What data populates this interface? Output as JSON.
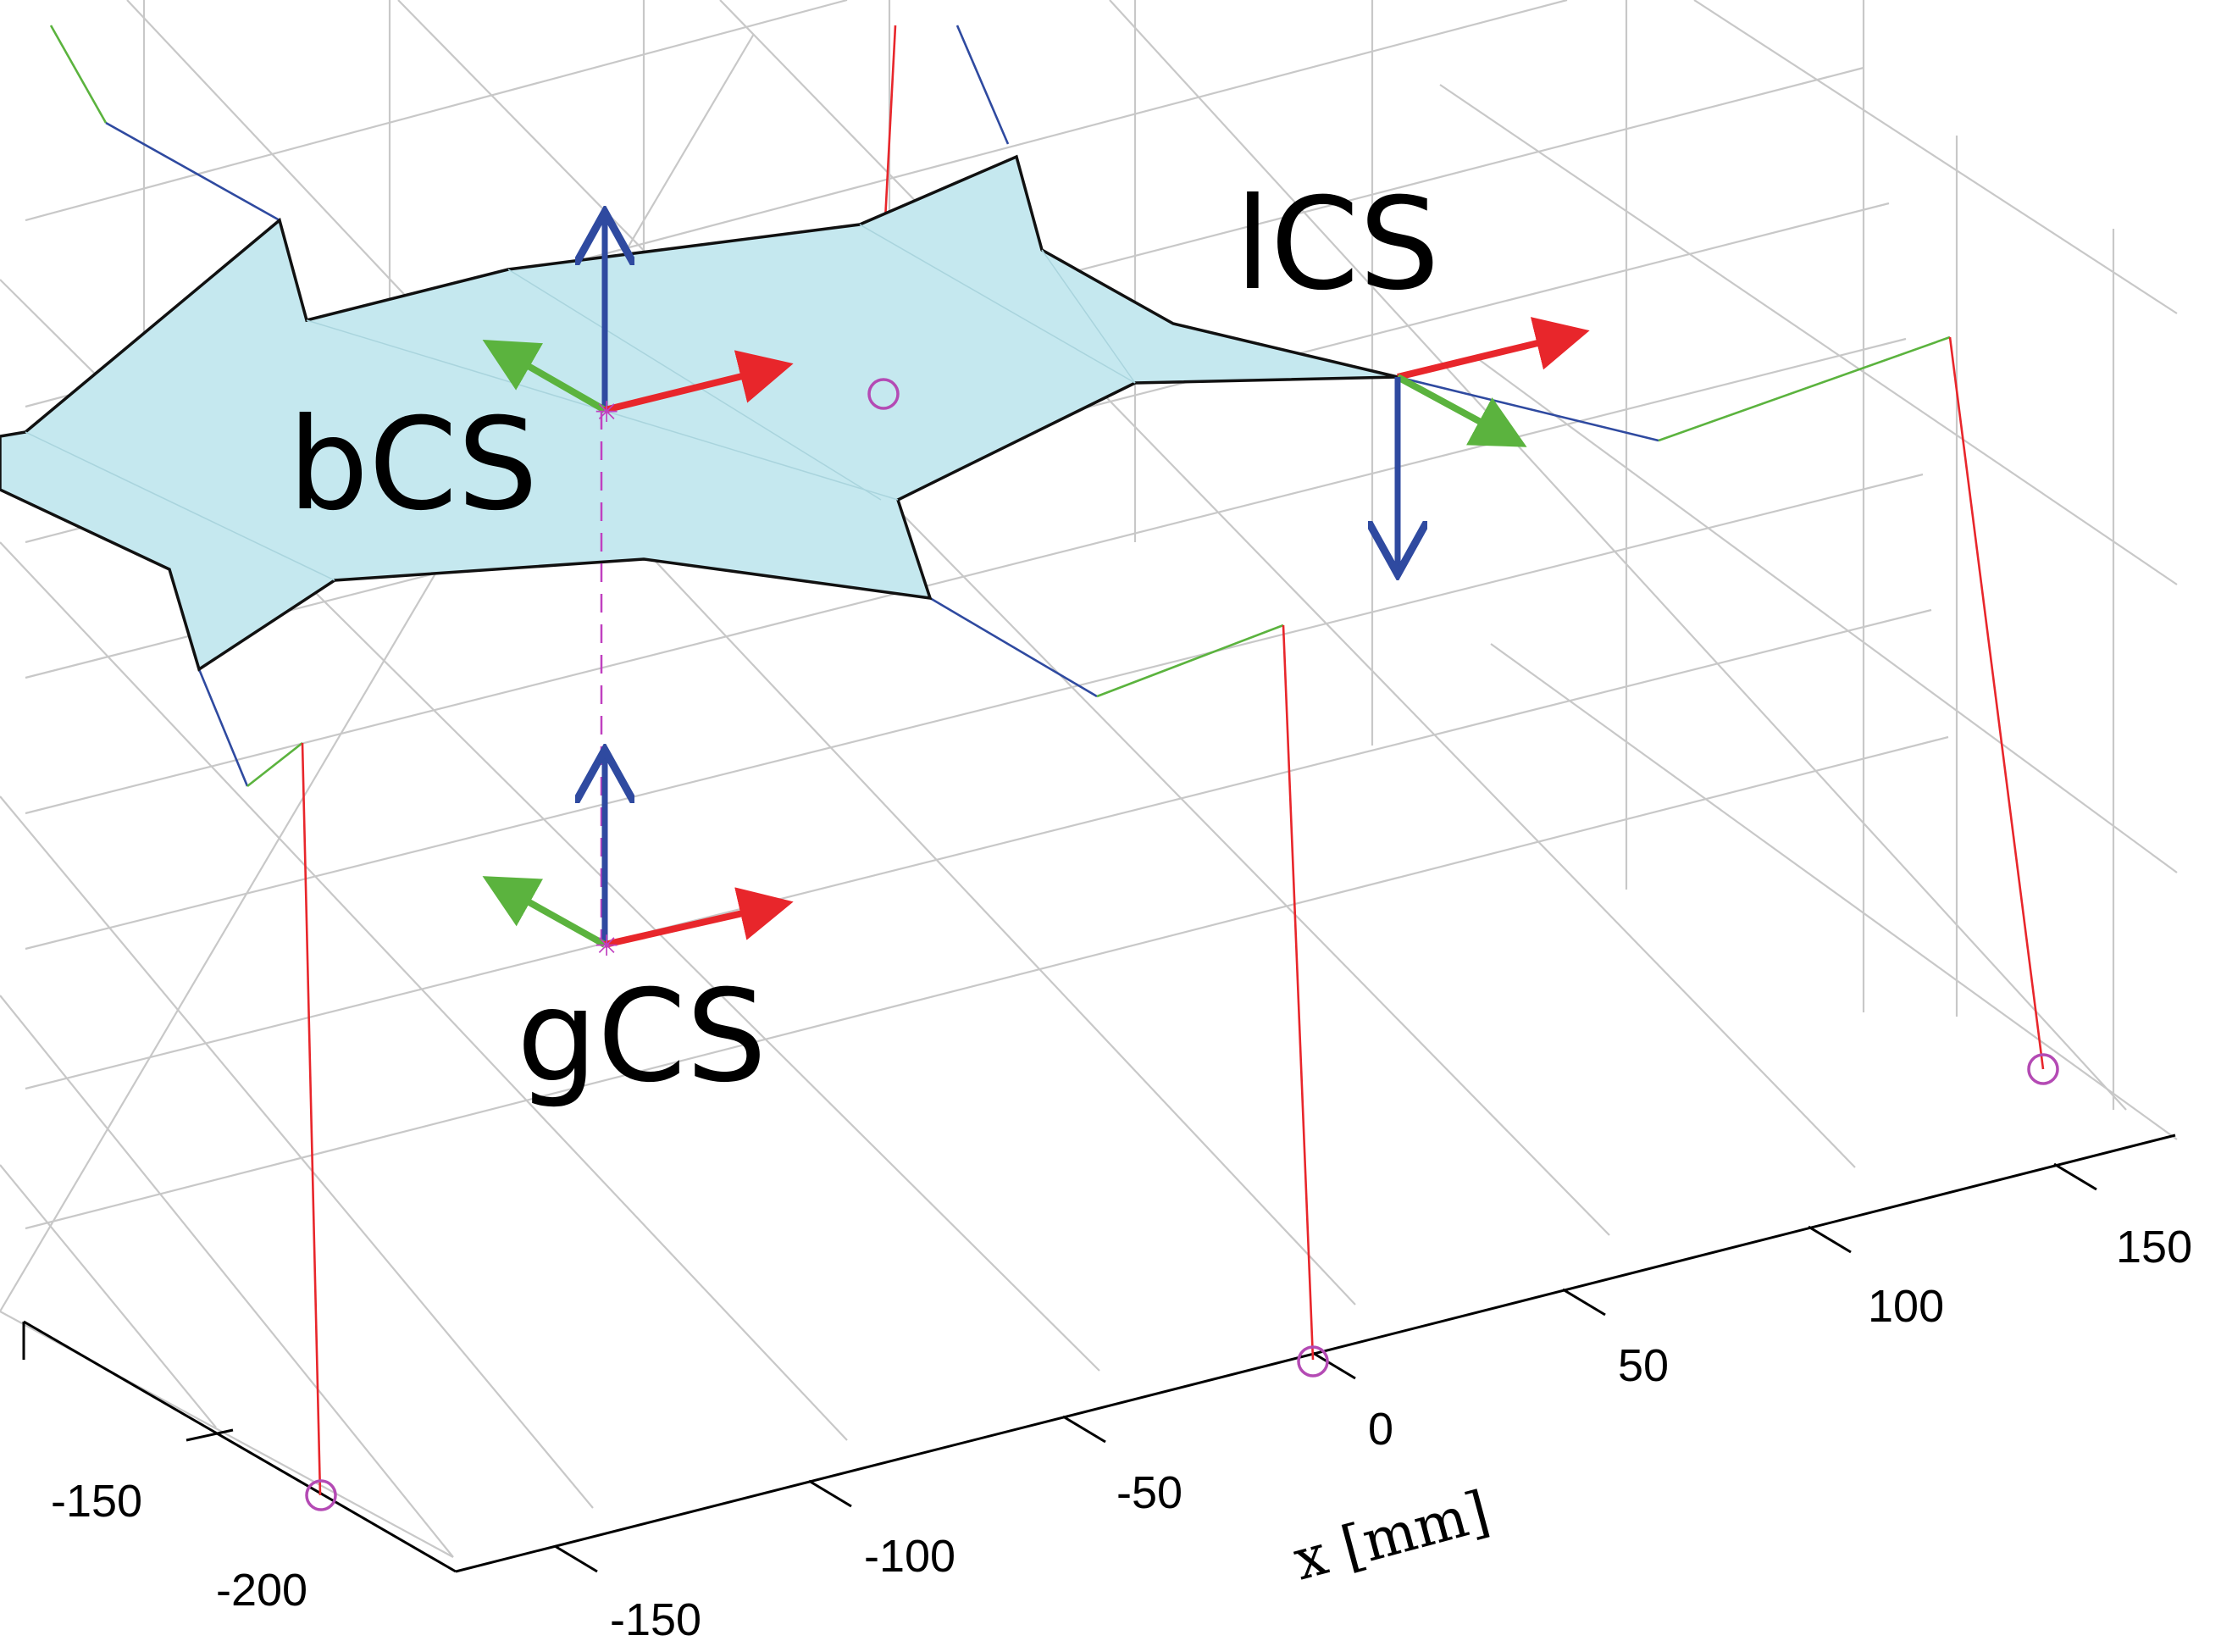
{
  "figure": {
    "colors": {
      "background": "#ffffff",
      "grid": "#c8c8c8",
      "axis": "#000000",
      "platform_fill": "#c5e8ef",
      "platform_edge": "#111111",
      "x_axis_arrow": "#e8262b",
      "y_axis_arrow": "#5bb33e",
      "z_axis_arrow": "#2f4aa0",
      "leg_red": "#e8262b",
      "leg_green": "#5bb33e",
      "leg_blue": "#2f4aa0",
      "anchor_circle": "#b44ab4",
      "origin_marker": "#c040c0",
      "dashed_link": "#c040c0"
    },
    "frames": [
      {
        "id": "bcs",
        "label": "bCS"
      },
      {
        "id": "gcs",
        "label": "gCS"
      },
      {
        "id": "lcs",
        "label": "lCS"
      }
    ],
    "x_axis": {
      "label": "x [mm]",
      "ticks": [
        "-150",
        "-100",
        "-50",
        "0",
        "50",
        "100",
        "150"
      ]
    },
    "y_axis": {
      "label": "",
      "ticks": [
        "-150",
        "-200"
      ]
    }
  }
}
